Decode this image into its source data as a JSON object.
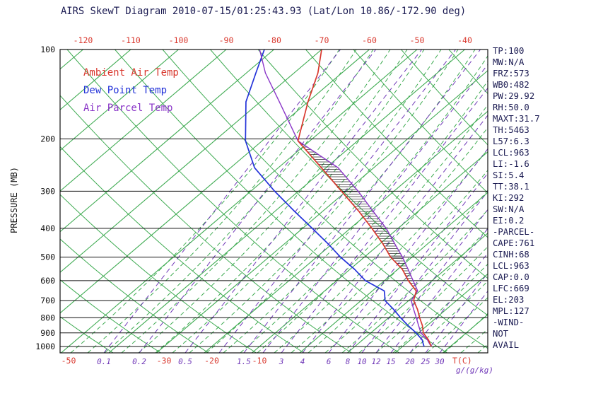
{
  "title": "AIRS SkewT Diagram 2010-07-15/01:25:43.93 (Lat/Lon 10.86/-172.90 deg)",
  "legend": [
    {
      "label": "Ambient Air Temp",
      "color": "#d9382e"
    },
    {
      "label": "Dew Point Temp",
      "color": "#2433d9"
    },
    {
      "label": "Air Parcel Temp",
      "color": "#8a36c8"
    }
  ],
  "axes": {
    "pressure_label": "PRESSURE (MB)",
    "pressure_ticks": [
      100,
      200,
      300,
      400,
      500,
      600,
      700,
      800,
      900,
      1000
    ],
    "top_temp_ticks": [
      -120,
      -110,
      -100,
      -90,
      -80,
      -70,
      -60,
      -50,
      -40
    ],
    "bottom_temp_ticks": [
      -50,
      -30,
      -20,
      -10
    ],
    "mixing_ratio_labels": [
      0.1,
      0.2,
      0.5,
      1.5,
      3,
      4,
      6,
      8,
      10,
      12,
      15,
      20,
      25,
      30
    ],
    "temp_unit": "T(C)",
    "mixing_unit": "g/(g/kg)"
  },
  "right_panel": {
    "lines": [
      "TP:100",
      "MW:N/A",
      "FRZ:573",
      "WB0:482",
      "PW:29.92",
      "RH:50.0",
      "MAXT:31.7",
      "TH:5463",
      "L57:6.3",
      "LCL:963",
      "LI:-1.6",
      "SI:5.4",
      "TT:38.1",
      "KI:292",
      "SW:N/A",
      "EI:0.2",
      "-PARCEL-",
      "CAPE:761",
      "CINH:68",
      "LCL:963",
      "CAP:0.0",
      "LFC:669",
      "EL:203",
      "MPL:127",
      "-WIND-",
      "NOT",
      "AVAIL"
    ]
  },
  "colors": {
    "red": "#d9382e",
    "blue": "#2433d9",
    "parcel_purple": "#8a36c8",
    "mixing_purple": "#7038b8",
    "grid_green": "#3fab52",
    "axis_black": "#111111",
    "panel_text": "#1b1b52",
    "title_text": "#1b1b52"
  },
  "chart_data": {
    "type": "line",
    "variant": "skew-t-log-p",
    "title": "AIRS SkewT Diagram 2010-07-15/01:25:43.93 (Lat/Lon 10.86/-172.90 deg)",
    "xlabel": "T(C)",
    "ylabel": "PRESSURE (MB)",
    "ylim_hpa": [
      100,
      1050
    ],
    "grid": true,
    "legend_position": "upper-left",
    "x_axis_note": "temperature skewed 45 degrees, isotherms every 10 C",
    "isotherms_c": {
      "min": -120,
      "max": 40,
      "step": 10
    },
    "pressure_lines_hpa": [
      100,
      200,
      300,
      400,
      500,
      600,
      700,
      800,
      900,
      1000
    ],
    "mixing_ratio_lines_gkg": [
      0.1,
      0.2,
      0.5,
      1,
      1.5,
      2,
      3,
      4,
      6,
      8,
      10,
      12,
      15,
      20,
      25,
      30
    ],
    "pressure_hpa": [
      1000,
      963,
      950,
      900,
      850,
      800,
      750,
      700,
      669,
      650,
      600,
      550,
      500,
      450,
      400,
      350,
      300,
      250,
      203,
      150,
      120,
      100
    ],
    "series": [
      {
        "name": "Ambient Air Temp",
        "color": "#d9382e",
        "temps_c": [
          26,
          24.4,
          23.8,
          21,
          19,
          16.5,
          14,
          11,
          9.9,
          9.2,
          5,
          1,
          -4.5,
          -9.5,
          -15.5,
          -22.5,
          -31,
          -41,
          -52.5,
          -60,
          -65,
          -70
        ]
      },
      {
        "name": "Dew Point Temp",
        "color": "#2433d9",
        "temps_c": [
          24.5,
          23,
          22.5,
          19.5,
          16,
          12.5,
          9,
          5,
          3.5,
          2.5,
          -4,
          -9,
          -15,
          -21,
          -28,
          -36,
          -45,
          -55,
          -63.5,
          -73,
          -78,
          -82
        ]
      },
      {
        "name": "Air Parcel Temp",
        "color": "#8a36c8",
        "temps_c": [
          26,
          24.2,
          23.6,
          20.5,
          18.2,
          15.8,
          13.2,
          10.5,
          9.9,
          9.5,
          6,
          2.2,
          -2,
          -7,
          -12.5,
          -19.5,
          -27.5,
          -37.5,
          -52.5,
          -66,
          -76,
          -83
        ]
      }
    ],
    "hatch_region": {
      "between": [
        "Ambient Air Temp",
        "Air Parcel Temp"
      ],
      "from_hpa": 669,
      "to_hpa": 203,
      "meaning": "CAPE area"
    }
  }
}
